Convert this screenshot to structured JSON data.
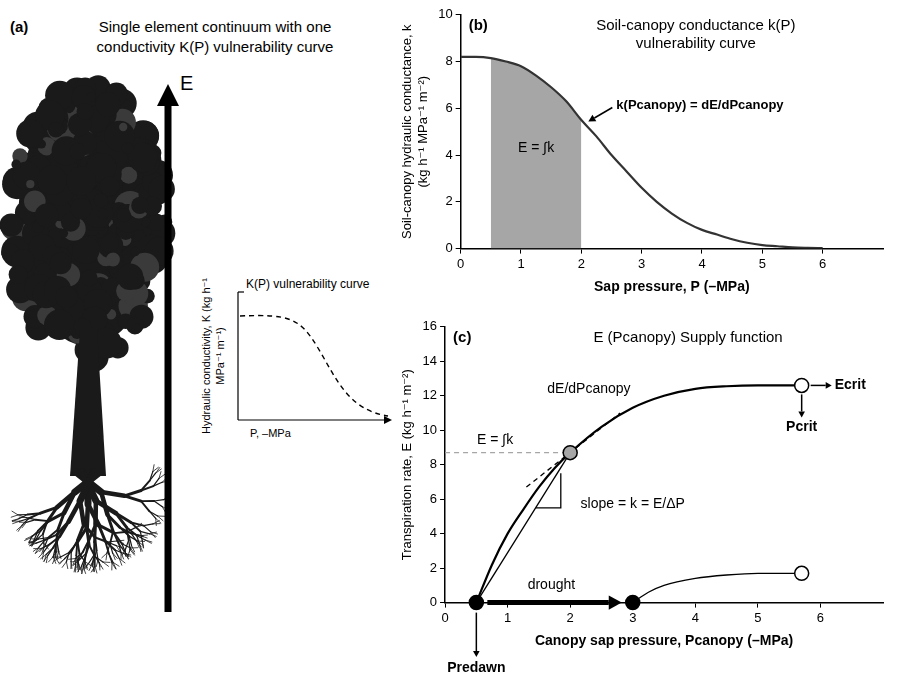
{
  "panel_a": {
    "letter": "(a)",
    "title": "Single element continuum with one conductivity K(P) vulnerability curve",
    "flow_label": "E",
    "inset": {
      "title": "K(P) vulnerability curve",
      "y_label": "Hydraulic conductivity, K (kg h⁻¹ MPa⁻¹ m⁻¹)",
      "x_label": "P, –MPa"
    }
  },
  "chart_data": [
    {
      "type": "line",
      "letter": "(b)",
      "title": "Soil-canopy conductance k(P) vulnerability curve",
      "x_label": "Sap pressure, P (–MPa)",
      "y_label": "Soil-canopy hydraulic conductance, k (kg h⁻¹ MPa⁻¹ m⁻²)",
      "xlim": [
        0,
        7
      ],
      "xticks": [
        0,
        1,
        2,
        3,
        4,
        5,
        6
      ],
      "ylim": [
        0,
        10
      ],
      "yticks": [
        0,
        2,
        4,
        6,
        8,
        10
      ],
      "grid": false,
      "series": [
        {
          "color": "#333333",
          "x": [
            0,
            0.25,
            0.5,
            0.75,
            1,
            1.25,
            1.5,
            1.75,
            2,
            2.25,
            2.5,
            2.75,
            3,
            3.25,
            3.5,
            3.75,
            4,
            4.25,
            4.5,
            4.75,
            5,
            5.25,
            5.5,
            5.75,
            6
          ],
          "values": [
            8.2,
            8.2,
            8.15,
            8.0,
            7.8,
            7.4,
            6.9,
            6.3,
            5.5,
            4.8,
            4.0,
            3.3,
            2.6,
            2.0,
            1.5,
            1.1,
            0.8,
            0.6,
            0.4,
            0.25,
            0.15,
            0.1,
            0.05,
            0.03,
            0.02
          ]
        }
      ],
      "shaded_range": {
        "x": [
          0.5,
          2
        ],
        "color": "#a6a6a6"
      },
      "annotations": [
        {
          "text": "E = ∫k",
          "x": 1.25,
          "y": 4.3
        }
      ],
      "callouts": [
        {
          "text": "k(Pcanopy) = dE/dPcanopy",
          "x": 2.05,
          "y": 5.35
        }
      ]
    },
    {
      "type": "line",
      "letter": "(c)",
      "title": "E (Pcanopy) Supply function",
      "x_label": "Canopy sap pressure, Pcanopy (–MPa)",
      "y_label": "Transpiration rate, E (kg h⁻¹ m⁻²)",
      "xlim": [
        0,
        7
      ],
      "xticks": [
        0,
        1,
        2,
        3,
        4,
        5,
        6
      ],
      "ylim": [
        0,
        16
      ],
      "yticks": [
        0,
        2,
        4,
        6,
        8,
        10,
        12,
        14,
        16
      ],
      "grid": false,
      "series": [
        {
          "color": "#000000",
          "x": [
            0.5,
            0.75,
            1,
            1.25,
            1.5,
            1.75,
            2,
            2.5,
            3,
            3.5,
            4,
            4.5,
            5,
            5.7
          ],
          "values": [
            0,
            2.2,
            4.0,
            5.4,
            6.7,
            7.8,
            8.7,
            10.2,
            11.3,
            12.0,
            12.4,
            12.55,
            12.6,
            12.6
          ]
        },
        {
          "color": "#000000",
          "x": [
            3,
            3.25,
            3.5,
            4,
            4.5,
            5,
            5.7
          ],
          "values": [
            0,
            0.6,
            1.0,
            1.4,
            1.6,
            1.7,
            1.7
          ]
        },
        {
          "color": "#000000",
          "x": [
            0.5,
            2
          ],
          "values": [
            0,
            8.7
          ]
        },
        {
          "color": "#000000",
          "line_style": "dashed",
          "x": [
            1.3,
            2.8
          ],
          "values": [
            6.7,
            11.0
          ]
        },
        {
          "color": "#000000",
          "x": [
            1.45,
            1.85,
            1.85
          ],
          "values": [
            5.5,
            5.5,
            7.5
          ]
        },
        {
          "color": "#a6a6a6",
          "line_style": "dashed",
          "x": [
            0,
            2
          ],
          "values": [
            8.7,
            8.7
          ]
        }
      ],
      "markers": [
        {
          "x": 0.5,
          "y": 0,
          "color": "#000000",
          "labels": [
            "Predawn"
          ]
        },
        {
          "x": 2,
          "y": 8.7,
          "color": "#a6a6a6"
        },
        {
          "x": 5.7,
          "y": 12.6,
          "color": "#ffffff",
          "labels": [
            "Ecrit",
            "Pcrit"
          ]
        },
        {
          "x": 3,
          "y": 0,
          "color": "#000000"
        },
        {
          "x": 5.7,
          "y": 1.7,
          "color": "#ffffff"
        }
      ],
      "annotations": [
        {
          "text": "E = ∫k",
          "x": 0.8,
          "y": 9.4
        },
        {
          "text": "dE/dPcanopy",
          "x": 2.3,
          "y": 12.4
        },
        {
          "text": "slope = k = E/ΔP",
          "x": 3.0,
          "y": 5.7
        },
        {
          "text": "drought",
          "x": 1.7,
          "y": 1.0
        }
      ]
    }
  ]
}
